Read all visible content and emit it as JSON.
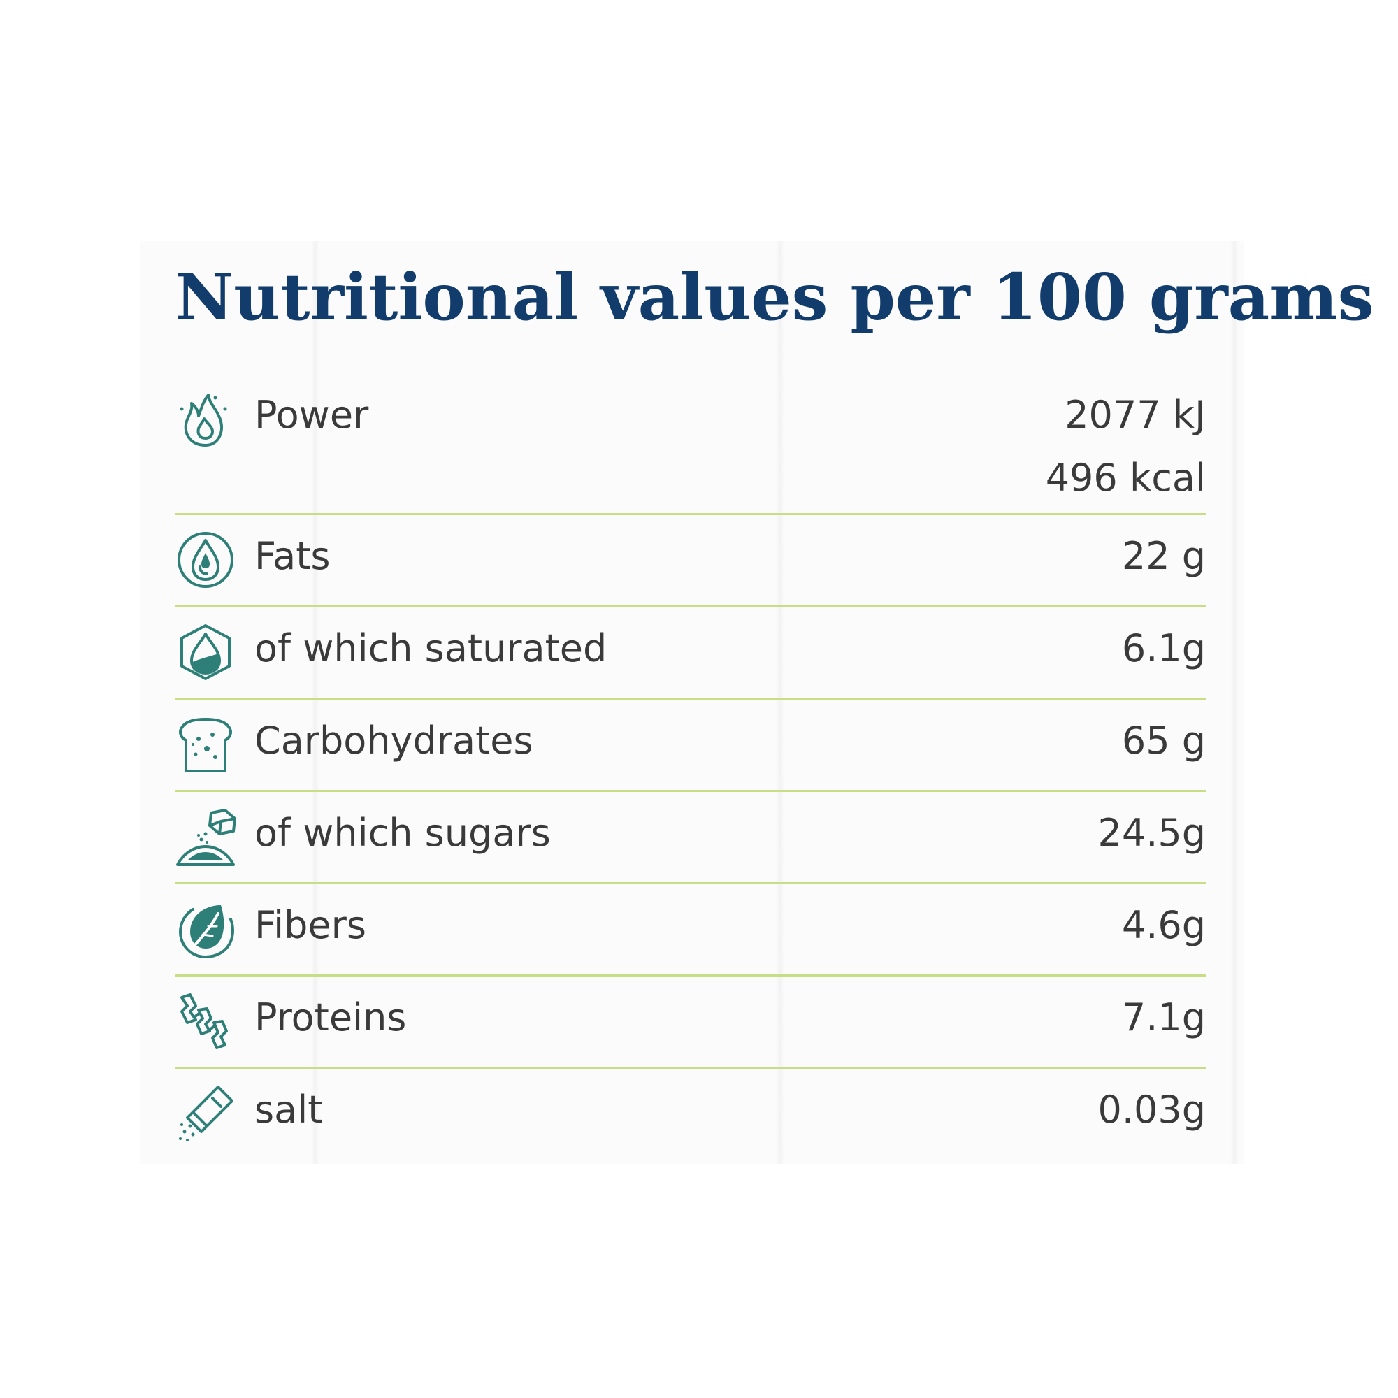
{
  "title": "Nutritional values per 100 grams",
  "accent_color": "#123c6b",
  "icon_color": "#2e7f78",
  "divider_color": "#c7dd86",
  "rows": [
    {
      "icon": "flame-icon",
      "label": "Power",
      "value": "2077 kJ",
      "value2": "496 kcal"
    },
    {
      "icon": "oil-drop-icon",
      "label": "Fats",
      "value": "22 g"
    },
    {
      "icon": "saturated-drop-icon",
      "label": "of which saturated",
      "value": "6.1g"
    },
    {
      "icon": "bread-icon",
      "label": "Carbohydrates",
      "value": "65 g"
    },
    {
      "icon": "sugar-cube-icon",
      "label": "of which sugars",
      "value": "24.5g"
    },
    {
      "icon": "leaf-icon",
      "label": "Fibers",
      "value": "4.6g"
    },
    {
      "icon": "protein-chain-icon",
      "label": "Proteins",
      "value": "7.1g"
    },
    {
      "icon": "salt-shaker-icon",
      "label": "salt",
      "value": "0.03g"
    }
  ]
}
